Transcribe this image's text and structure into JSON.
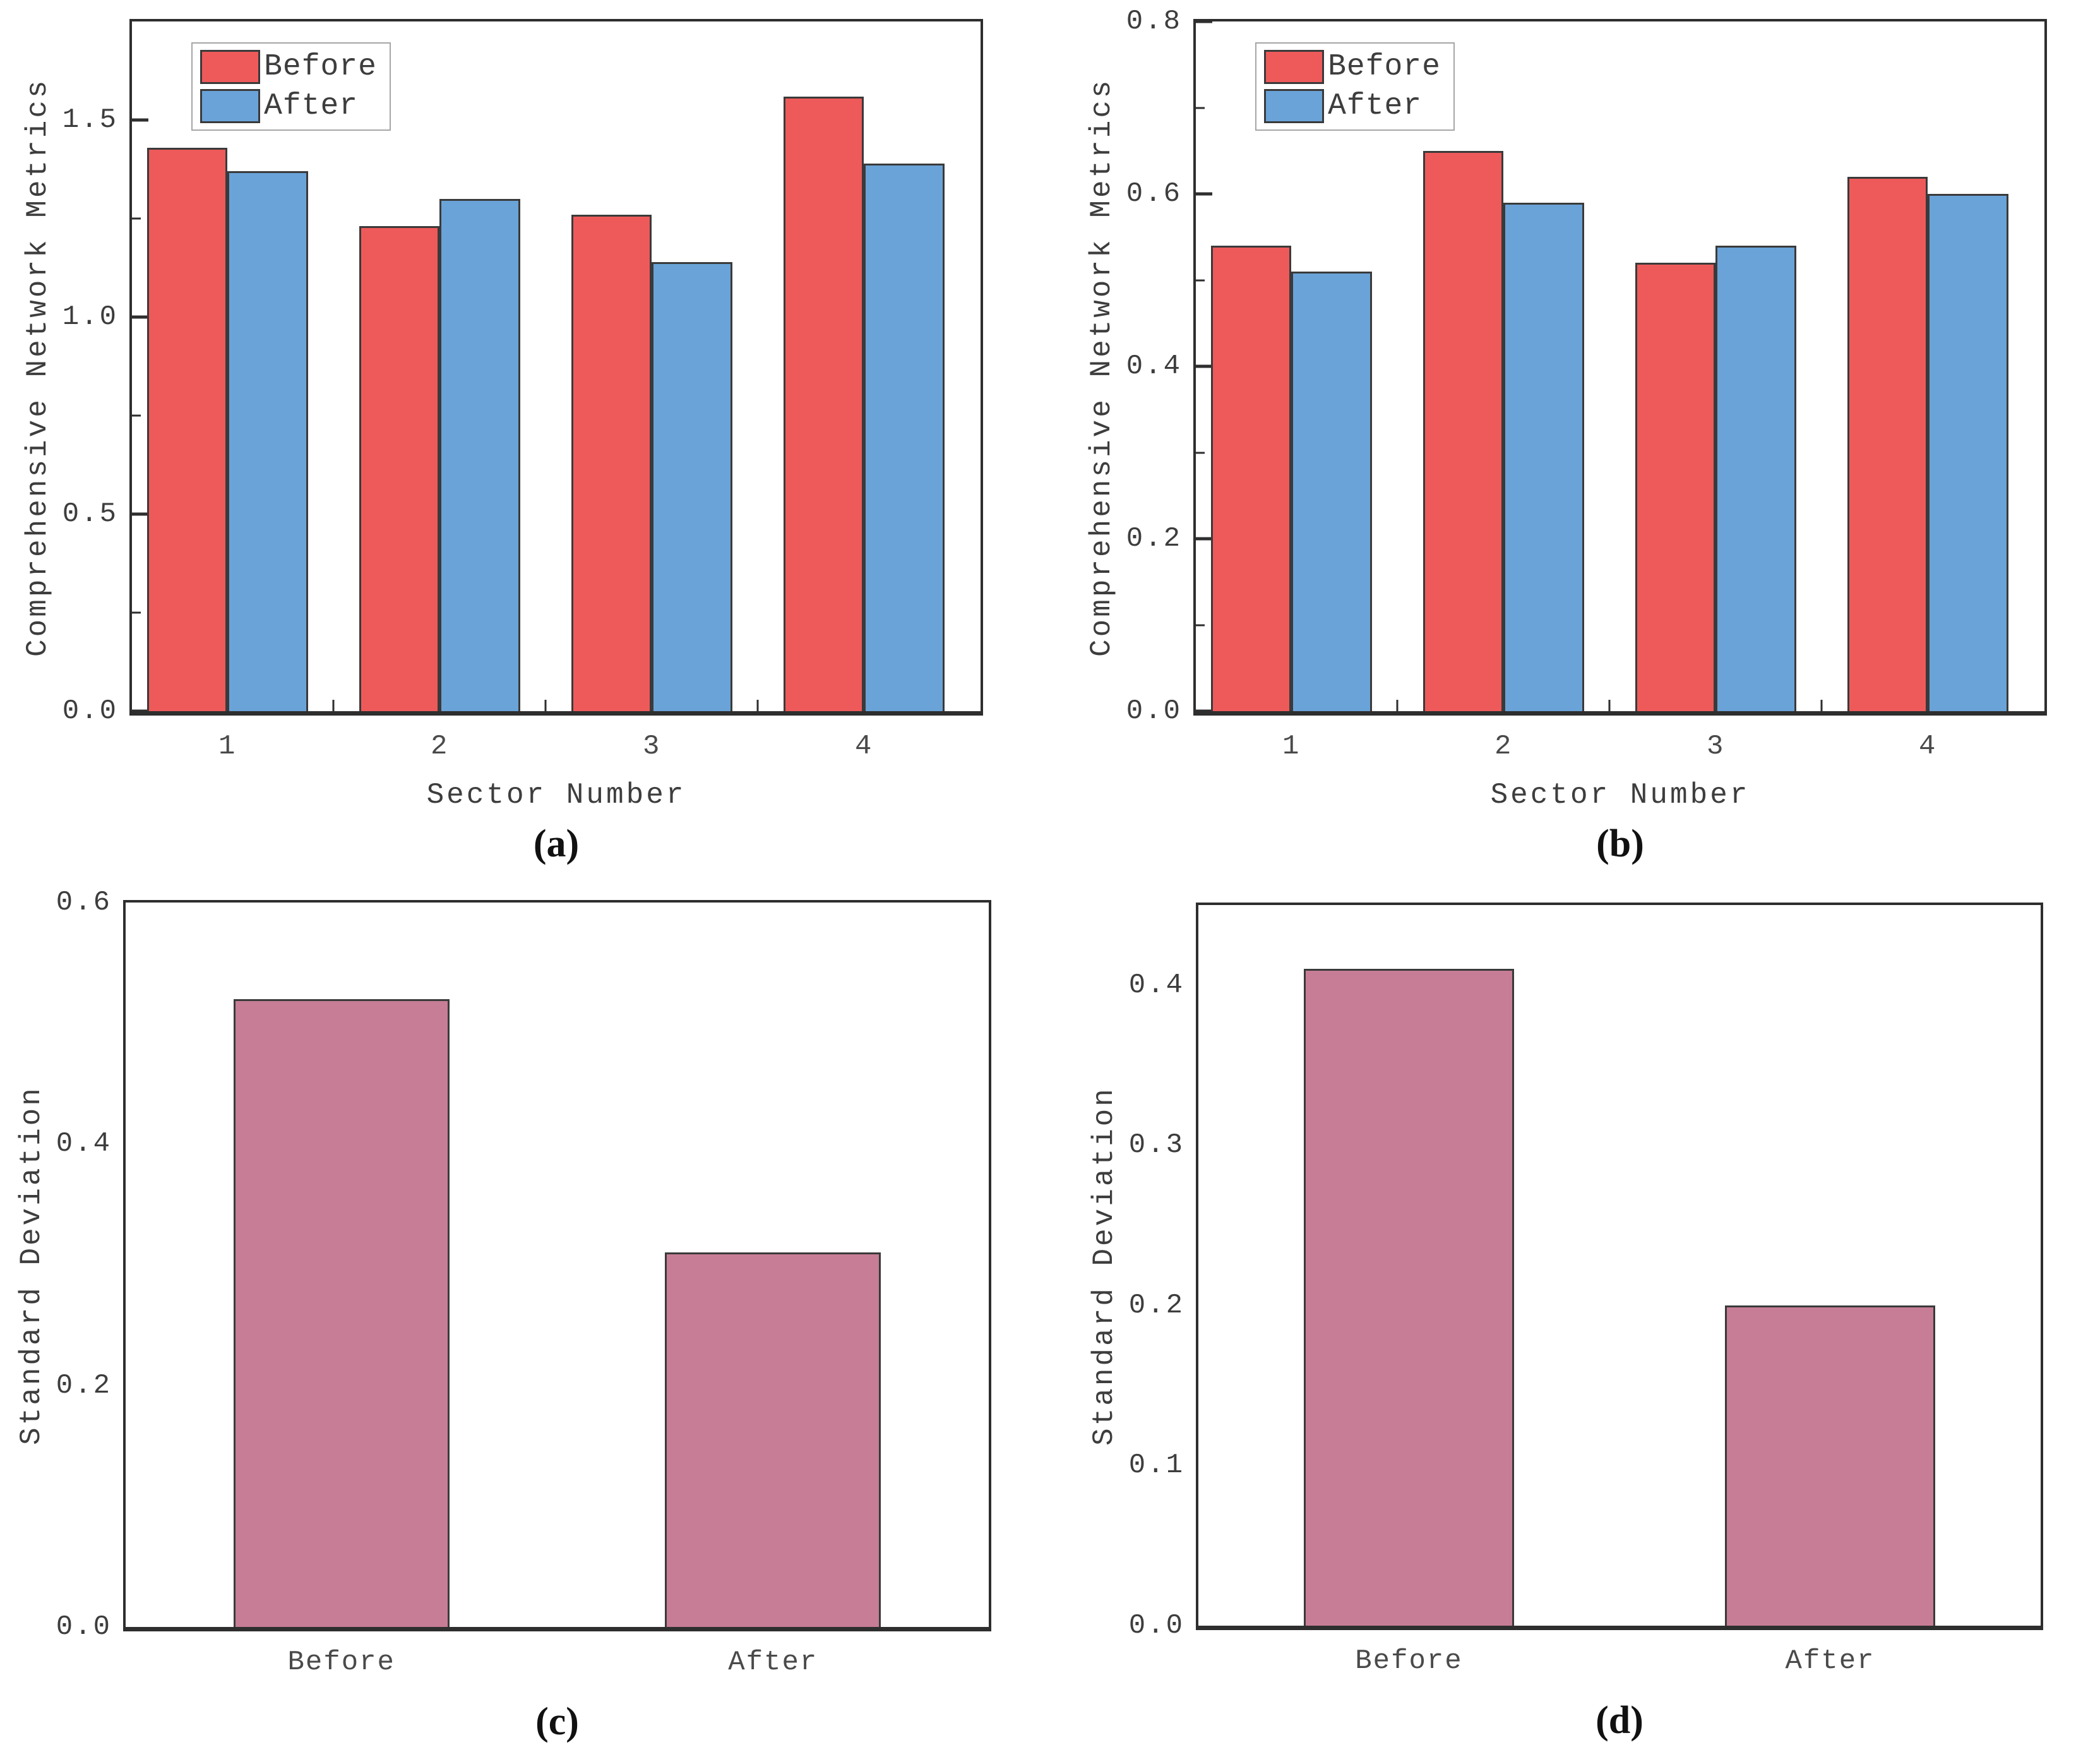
{
  "figure": {
    "background": "#ffffff",
    "text_color": "#3d3d3d",
    "spine_color": "#2e2e2e",
    "bar_edge_color": "#3a3a3a",
    "legend_border_color": "#a6a6a6",
    "colors": {
      "before_red": "#ee5a5a",
      "after_blue": "#6aa3d8",
      "std_mauve": "#c67d95"
    }
  },
  "chart_data": [
    {
      "id": "a",
      "type": "bar",
      "caption": "(a)",
      "xlabel": "Sector Number",
      "ylabel": "Comprehensive Network Metrics",
      "categories": [
        "1",
        "2",
        "3",
        "4"
      ],
      "series": [
        {
          "name": "Before",
          "color": "#ee5a5a",
          "values": [
            1.43,
            1.23,
            1.26,
            1.56
          ]
        },
        {
          "name": "After",
          "color": "#6aa3d8",
          "values": [
            1.37,
            1.3,
            1.14,
            1.39
          ]
        }
      ],
      "legend": true,
      "legend_position": "top-left",
      "grid": false,
      "ylim": [
        0,
        1.75
      ],
      "yticks": [
        "0.0",
        "0.5",
        "1.0",
        "1.5"
      ],
      "minor_tick_step": 0.25,
      "xlim": [
        0.55,
        4.55
      ],
      "centers": [
        1,
        2,
        3,
        4
      ],
      "bar_width": 0.38,
      "offsets": [
        -0.19,
        0.19
      ],
      "x_boundary_ticks": [
        1.5,
        2.5,
        3.5
      ],
      "show_y_tick_marks": true
    },
    {
      "id": "b",
      "type": "bar",
      "caption": "(b)",
      "xlabel": "Sector Number",
      "ylabel": "Comprehensive Network Metrics",
      "categories": [
        "1",
        "2",
        "3",
        "4"
      ],
      "series": [
        {
          "name": "Before",
          "color": "#ee5a5a",
          "values": [
            0.54,
            0.65,
            0.52,
            0.62
          ]
        },
        {
          "name": "After",
          "color": "#6aa3d8",
          "values": [
            0.51,
            0.59,
            0.54,
            0.6
          ]
        }
      ],
      "legend": true,
      "legend_position": "top-left",
      "grid": false,
      "ylim": [
        0,
        0.8
      ],
      "yticks": [
        "0.0",
        "0.2",
        "0.4",
        "0.6",
        "0.8"
      ],
      "minor_tick_step": 0.1,
      "xlim": [
        0.55,
        4.55
      ],
      "centers": [
        1,
        2,
        3,
        4
      ],
      "bar_width": 0.38,
      "offsets": [
        -0.19,
        0.19
      ],
      "x_boundary_ticks": [
        1.5,
        2.5,
        3.5
      ],
      "show_y_tick_marks": true
    },
    {
      "id": "c",
      "type": "bar",
      "caption": "(c)",
      "xlabel": "",
      "ylabel": "Standard Deviation",
      "categories": [
        "Before",
        "After"
      ],
      "series": [
        {
          "name": "",
          "color": "#c67d95",
          "values": [
            0.52,
            0.31
          ]
        }
      ],
      "legend": false,
      "grid": false,
      "ylim": [
        0,
        0.6
      ],
      "yticks": [
        "0.0",
        "0.2",
        "0.4",
        "0.6"
      ],
      "minor_tick_step": null,
      "xlim": [
        0,
        2
      ],
      "centers": [
        0.5,
        1.5
      ],
      "bar_width": 0.5,
      "offsets": [
        0
      ],
      "x_boundary_ticks": [],
      "show_y_tick_marks": false
    },
    {
      "id": "d",
      "type": "bar",
      "caption": "(d)",
      "xlabel": "",
      "ylabel": "Standard Deviation",
      "categories": [
        "Before",
        "After"
      ],
      "series": [
        {
          "name": "",
          "color": "#c67d95",
          "values": [
            0.41,
            0.2
          ]
        }
      ],
      "legend": false,
      "grid": false,
      "ylim": [
        0,
        0.45
      ],
      "yticks": [
        "0.0",
        "0.1",
        "0.2",
        "0.3",
        "0.4"
      ],
      "minor_tick_step": null,
      "xlim": [
        0,
        2
      ],
      "centers": [
        0.5,
        1.5
      ],
      "bar_width": 0.5,
      "offsets": [
        0
      ],
      "x_boundary_ticks": [],
      "show_y_tick_marks": false
    }
  ]
}
